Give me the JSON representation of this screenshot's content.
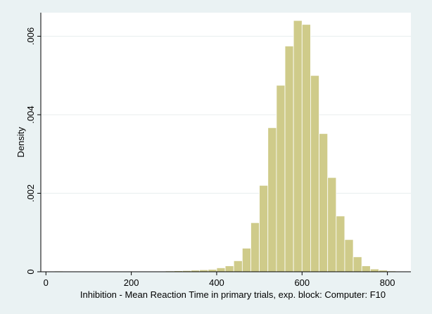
{
  "chart_data": {
    "type": "bar",
    "title": "",
    "xlabel": "Inhibition - Mean Reaction Time in primary trials, exp. block: Computer: F10",
    "ylabel": "Density",
    "xlim": [
      -12,
      855
    ],
    "ylim": [
      0,
      0.0066
    ],
    "x_ticks": [
      {
        "value": 0,
        "label": "0"
      },
      {
        "value": 200,
        "label": "200"
      },
      {
        "value": 400,
        "label": "400"
      },
      {
        "value": 600,
        "label": "600"
      },
      {
        "value": 800,
        "label": "800"
      }
    ],
    "y_ticks": [
      {
        "value": 0,
        "label": "0"
      },
      {
        "value": 0.002,
        "label": ".002"
      },
      {
        "value": 0.004,
        "label": ".004"
      },
      {
        "value": 0.006,
        "label": ".006"
      }
    ],
    "grid": true,
    "bar_color": "#cfcb8a",
    "bar_edge_color": "#ffffff",
    "bins": [
      {
        "x0": 0,
        "x1": 20,
        "density": 1.5e-05
      },
      {
        "x0": 20,
        "x1": 40,
        "density": 1.8e-05
      },
      {
        "x0": 100,
        "x1": 120,
        "density": 1.2e-05
      },
      {
        "x0": 120,
        "x1": 140,
        "density": 1.4e-05
      },
      {
        "x0": 140,
        "x1": 160,
        "density": 1.2e-05
      },
      {
        "x0": 160,
        "x1": 180,
        "density": 1.2e-05
      },
      {
        "x0": 200,
        "x1": 220,
        "density": 1e-05
      },
      {
        "x0": 220,
        "x1": 240,
        "density": 1.2e-05
      },
      {
        "x0": 240,
        "x1": 260,
        "density": 1.5e-05
      },
      {
        "x0": 260,
        "x1": 280,
        "density": 1.5e-05
      },
      {
        "x0": 280,
        "x1": 300,
        "density": 2e-05
      },
      {
        "x0": 300,
        "x1": 320,
        "density": 2.5e-05
      },
      {
        "x0": 320,
        "x1": 340,
        "density": 3e-05
      },
      {
        "x0": 340,
        "x1": 360,
        "density": 4e-05
      },
      {
        "x0": 360,
        "x1": 380,
        "density": 5e-05
      },
      {
        "x0": 380,
        "x1": 400,
        "density": 6e-05
      },
      {
        "x0": 400,
        "x1": 420,
        "density": 0.0001
      },
      {
        "x0": 420,
        "x1": 440,
        "density": 0.00015
      },
      {
        "x0": 440,
        "x1": 460,
        "density": 0.00028
      },
      {
        "x0": 460,
        "x1": 480,
        "density": 0.0006
      },
      {
        "x0": 480,
        "x1": 500,
        "density": 0.00125
      },
      {
        "x0": 500,
        "x1": 520,
        "density": 0.0022
      },
      {
        "x0": 520,
        "x1": 540,
        "density": 0.00367
      },
      {
        "x0": 540,
        "x1": 560,
        "density": 0.00475
      },
      {
        "x0": 560,
        "x1": 580,
        "density": 0.00575
      },
      {
        "x0": 580,
        "x1": 600,
        "density": 0.0064
      },
      {
        "x0": 600,
        "x1": 620,
        "density": 0.0063
      },
      {
        "x0": 620,
        "x1": 640,
        "density": 0.005
      },
      {
        "x0": 640,
        "x1": 660,
        "density": 0.00352
      },
      {
        "x0": 660,
        "x1": 680,
        "density": 0.0024
      },
      {
        "x0": 680,
        "x1": 700,
        "density": 0.00142
      },
      {
        "x0": 700,
        "x1": 720,
        "density": 0.00082
      },
      {
        "x0": 720,
        "x1": 740,
        "density": 0.00038
      },
      {
        "x0": 740,
        "x1": 760,
        "density": 0.00015
      },
      {
        "x0": 760,
        "x1": 780,
        "density": 7e-05
      },
      {
        "x0": 780,
        "x1": 800,
        "density": 4e-05
      },
      {
        "x0": 800,
        "x1": 820,
        "density": 2e-05
      },
      {
        "x0": 820,
        "x1": 840,
        "density": 1e-05
      }
    ]
  }
}
